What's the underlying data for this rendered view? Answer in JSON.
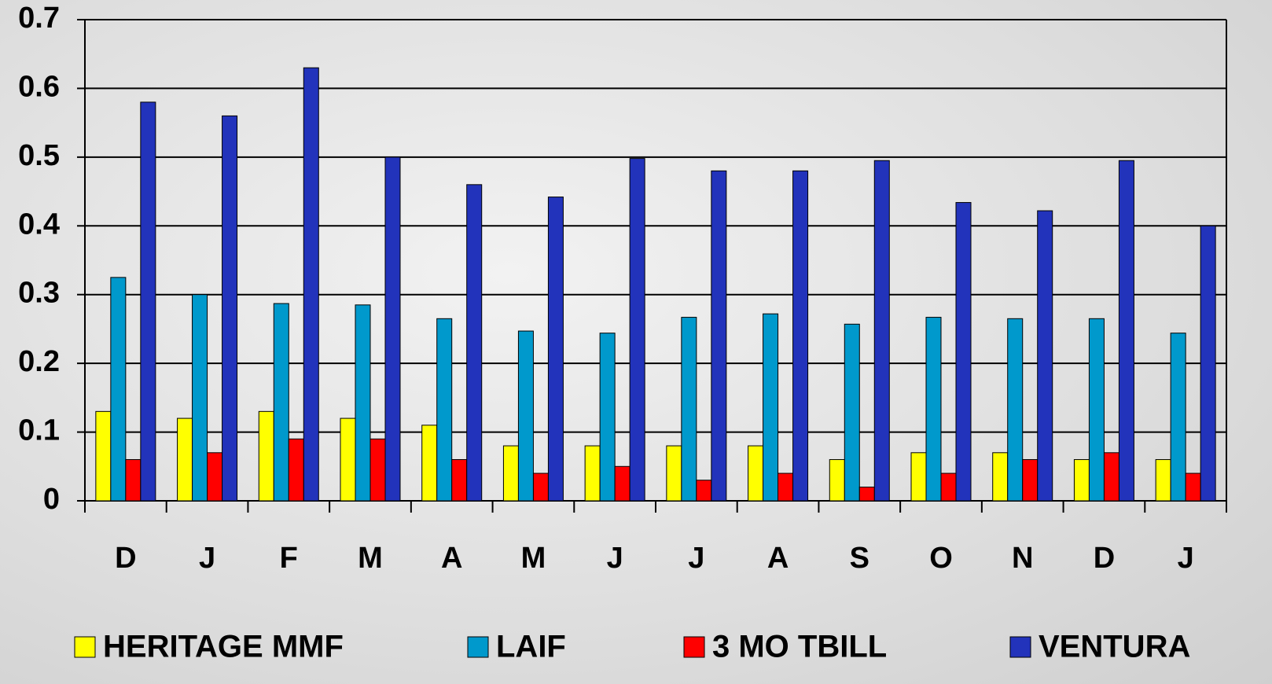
{
  "chart_data": {
    "type": "bar",
    "categories": [
      "D",
      "J",
      "F",
      "M",
      "A",
      "M",
      "J",
      "J",
      "A",
      "S",
      "O",
      "N",
      "D",
      "J"
    ],
    "series": [
      {
        "name": "HERITAGE MMF",
        "color": "#ffff00",
        "values": [
          0.13,
          0.12,
          0.13,
          0.12,
          0.11,
          0.08,
          0.08,
          0.08,
          0.08,
          0.06,
          0.07,
          0.07,
          0.06,
          0.06
        ]
      },
      {
        "name": "LAIF",
        "color": "#0099cc",
        "values": [
          0.325,
          0.3,
          0.287,
          0.285,
          0.265,
          0.247,
          0.244,
          0.267,
          0.272,
          0.257,
          0.267,
          0.265,
          0.265,
          0.244
        ]
      },
      {
        "name": "3 MO TBILL",
        "color": "#ff0000",
        "values": [
          0.06,
          0.07,
          0.09,
          0.09,
          0.06,
          0.04,
          0.05,
          0.03,
          0.04,
          0.02,
          0.04,
          0.06,
          0.07,
          0.04
        ]
      },
      {
        "name": "VENTURA",
        "color": "#2233bb",
        "values": [
          0.58,
          0.56,
          0.63,
          0.5,
          0.46,
          0.442,
          0.498,
          0.48,
          0.48,
          0.495,
          0.434,
          0.422,
          0.495,
          0.4
        ]
      }
    ],
    "ylim": [
      0,
      0.7
    ],
    "yticks": [
      0,
      0.1,
      0.2,
      0.3,
      0.4,
      0.5,
      0.6,
      0.7
    ],
    "grid": true,
    "legend": "bottom"
  }
}
